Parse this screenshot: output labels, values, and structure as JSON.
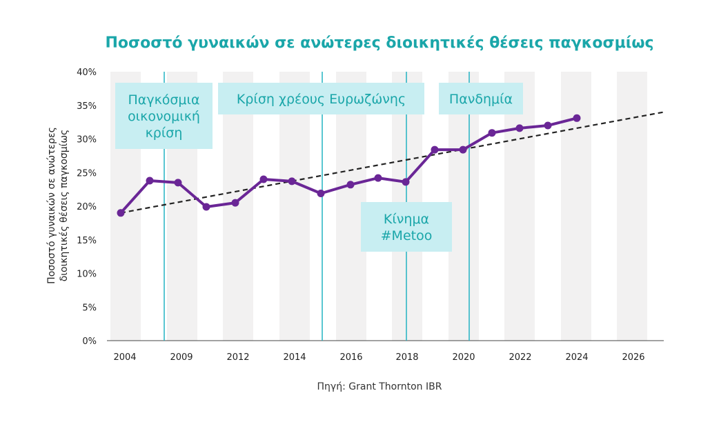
{
  "chart_data": {
    "type": "line",
    "title": "Ποσοστό γυναικών σε ανώτερες διοικητικές θέσεις παγκοσμίως",
    "ylabel_lines": [
      "Ποσοστό γυναικών σε ανώτερες",
      "διοικητικές θέσεις παγκοσμίως"
    ],
    "xlabel": "",
    "source": "Πηγή: Grant Thornton IBR",
    "x_tick_labels": [
      "2004",
      "2009",
      "2012",
      "2014",
      "2016",
      "2018",
      "2020",
      "2022",
      "2024",
      "2026"
    ],
    "y_tick_labels": [
      "0%",
      "5%",
      "10%",
      "15%",
      "20%",
      "25%",
      "30%",
      "35%",
      "40%"
    ],
    "ylim": [
      0,
      40
    ],
    "series": [
      {
        "values": [
          19,
          23.8,
          23.5,
          19.9,
          20.5,
          24,
          23.7,
          21.9,
          23.2,
          24.2,
          23.6,
          28.4,
          28.4,
          30.9,
          31.6,
          32,
          33.1
        ]
      }
    ],
    "trendline": {
      "style": "dashed",
      "start": 19,
      "end": 34
    },
    "events": [
      {
        "label_lines": [
          "Παγκόσμια",
          "οικονομική",
          "κρίση"
        ]
      },
      {
        "label_lines": [
          "Κρίση χρέους Ευρωζώνης"
        ]
      },
      {
        "label_lines": [
          "Κίνημα",
          "#Metoo"
        ]
      },
      {
        "label_lines": [
          "Πανδημία"
        ]
      }
    ],
    "grid": false,
    "colors": {
      "line": "#6a2696",
      "trend": "#222222",
      "event": "#22b3c2",
      "label_bg": "#c8eef2",
      "band": "#f2f1f1",
      "title": "#1aa6a9"
    }
  }
}
